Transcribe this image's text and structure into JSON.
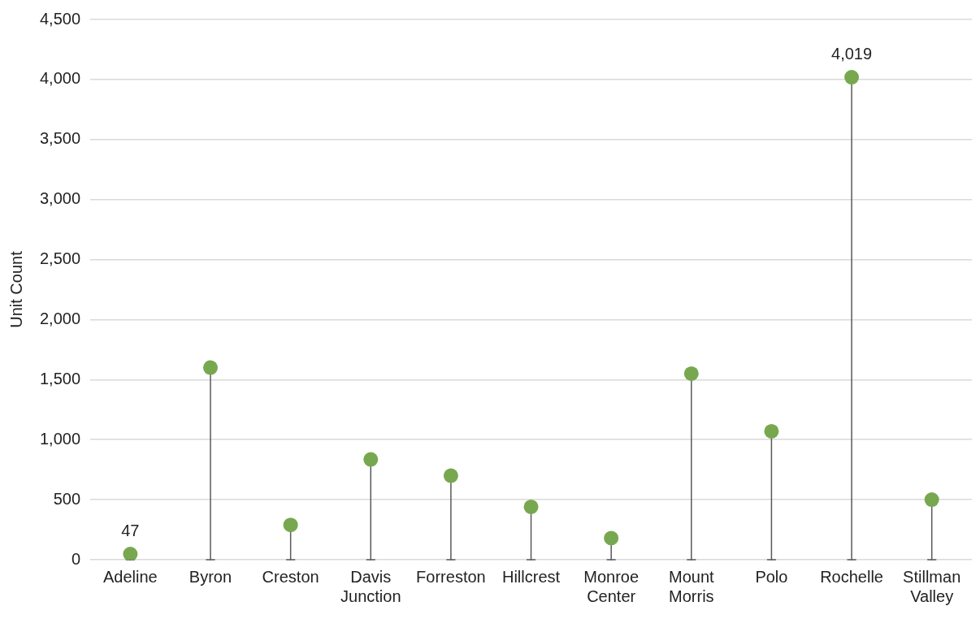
{
  "chart_data": {
    "type": "lollipop",
    "ylabel": "Unit Count",
    "categories": [
      "Adeline",
      "Byron",
      "Creston",
      "Davis Junction",
      "Forreston",
      "Hillcrest",
      "Monroe Center",
      "Mount Morris",
      "Polo",
      "Rochelle",
      "Stillman Valley"
    ],
    "values": [
      47,
      1600,
      290,
      835,
      700,
      440,
      180,
      1550,
      1070,
      4019,
      500
    ],
    "value_labels": [
      "47",
      null,
      null,
      null,
      null,
      null,
      null,
      null,
      null,
      "4,019",
      null
    ],
    "color": "#77a84f",
    "marker": "circle",
    "grid": "y",
    "ylim": [
      0,
      4500
    ],
    "yticks": [
      {
        "value": 0,
        "label": "0"
      },
      {
        "value": 500,
        "label": "500"
      },
      {
        "value": 1000,
        "label": "1,000"
      },
      {
        "value": 1500,
        "label": "1,500"
      },
      {
        "value": 2000,
        "label": "2,000"
      },
      {
        "value": 2500,
        "label": "2,500"
      },
      {
        "value": 3000,
        "label": "3,000"
      },
      {
        "value": 3500,
        "label": "3,500"
      },
      {
        "value": 4000,
        "label": "4,000"
      },
      {
        "value": 4500,
        "label": "4,500"
      }
    ]
  }
}
